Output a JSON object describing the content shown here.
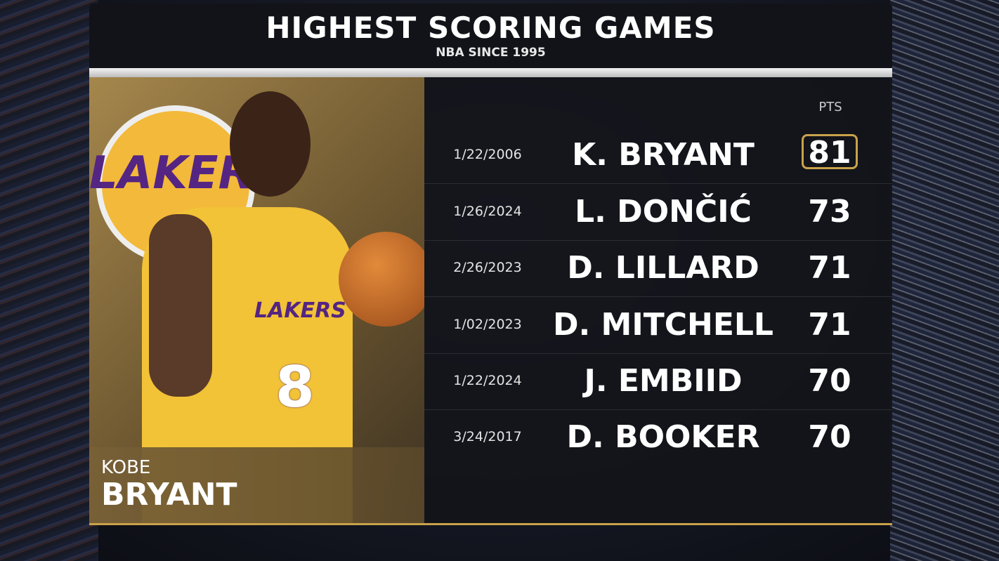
{
  "header": {
    "title": "HIGHEST SCORING GAMES",
    "subtitle": "NBA SINCE 1995"
  },
  "featured": {
    "first_name": "KOBE",
    "last_name": "BRYANT",
    "jersey_text": "LAKERS",
    "jersey_number": "8",
    "logo_text": "LAKERS"
  },
  "table": {
    "pts_header": "PTS",
    "highlight_color": "#c9a24a",
    "rows": [
      {
        "date": "1/22/2006",
        "player": "K. BRYANT",
        "pts": "81",
        "highlighted": true
      },
      {
        "date": "1/26/2024",
        "player": "L. DONČIĆ",
        "pts": "73"
      },
      {
        "date": "2/26/2023",
        "player": "D. LILLARD",
        "pts": "71"
      },
      {
        "date": "1/02/2023",
        "player": "D. MITCHELL",
        "pts": "71"
      },
      {
        "date": "1/22/2024",
        "player": "J. EMBIID",
        "pts": "70"
      },
      {
        "date": "3/24/2017",
        "player": "D. BOOKER",
        "pts": "70"
      }
    ]
  }
}
